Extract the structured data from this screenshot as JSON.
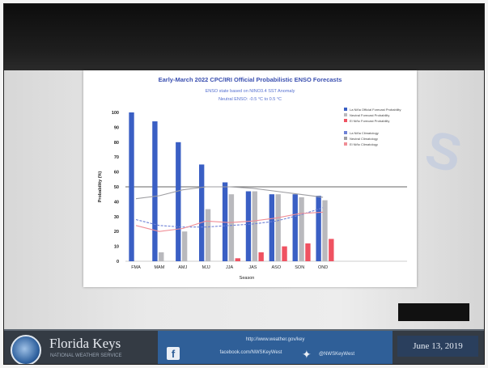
{
  "slide": {
    "org_name": "Florida Keys",
    "org_subtitle": "NATIONAL WEATHER SERVICE",
    "footer_line1": "http://www.weather.gov/key",
    "footer_line2": "facebook.com/NWSKeyWest",
    "twitter_handle": "@NWSKeyWest",
    "date": "June 13, 2019",
    "watermark": "S"
  },
  "chart_data": {
    "type": "bar",
    "title": "Early-March 2022 CPC/IRI Official Probabilistic ENSO Forecasts",
    "subtitle_1": "ENSO state based on NINO3.4 SST Anomaly",
    "subtitle_2": "Neutral ENSO: -0.5 °C to 0.5 °C",
    "xlabel": "Season",
    "ylabel": "Probability (%)",
    "ylim": [
      0,
      100
    ],
    "yticks": [
      0,
      10,
      20,
      30,
      40,
      50,
      60,
      70,
      80,
      90,
      100
    ],
    "categories": [
      "FMA",
      "MAM",
      "AMJ",
      "MJJ",
      "JJA",
      "JAS",
      "ASO",
      "SON",
      "OND"
    ],
    "series": [
      {
        "name": "La Niña Official Forecast Probability",
        "color": "#3a5fc4",
        "values": [
          100,
          94,
          80,
          65,
          53,
          47,
          45,
          45,
          44
        ]
      },
      {
        "name": "Neutral Forecast Probability",
        "color": "#b9b9bd",
        "values": [
          0,
          6,
          20,
          35,
          45,
          47,
          45,
          43,
          41
        ]
      },
      {
        "name": "El Niño Forecast Probability",
        "color": "#ef5261",
        "values": [
          0,
          0,
          0,
          0,
          2,
          6,
          10,
          12,
          15
        ]
      }
    ],
    "lines": [
      {
        "name": "La Niña Climatology",
        "color": "#6f82d6",
        "values": [
          28,
          24,
          23,
          23,
          24,
          25,
          27,
          31,
          36
        ]
      },
      {
        "name": "Neutral Climatology",
        "color": "#9e9ea2",
        "values": [
          42,
          44,
          48,
          50,
          50,
          49,
          47,
          45,
          43
        ]
      },
      {
        "name": "El Niño Climatology",
        "color": "#f08e96",
        "values": [
          24,
          20,
          22,
          27,
          26,
          27,
          29,
          32,
          33
        ]
      }
    ],
    "reference_line": 50,
    "legend_position": "right",
    "colors": {
      "la_nina": "#3a5fc4",
      "neutral": "#b9b9bd",
      "el_nino": "#ef5261"
    }
  }
}
